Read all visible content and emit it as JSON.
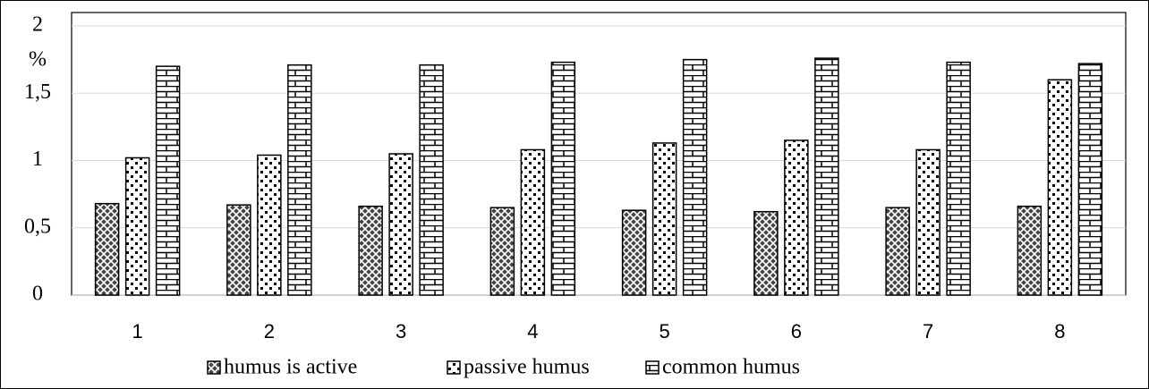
{
  "chart_data": {
    "type": "bar",
    "y_label": "%",
    "categories": [
      "1",
      "2",
      "3",
      "4",
      "5",
      "6",
      "7",
      "8"
    ],
    "series": [
      {
        "name": "humus is active",
        "color": "#000000",
        "values": [
          0.68,
          0.67,
          0.66,
          0.65,
          0.63,
          0.62,
          0.65,
          0.66
        ]
      },
      {
        "name": "passive humus",
        "color": "#000000",
        "values": [
          1.02,
          1.04,
          1.05,
          1.08,
          1.13,
          1.15,
          1.08,
          1.6
        ]
      },
      {
        "name": "common humus",
        "color": "#000000",
        "values": [
          1.7,
          1.71,
          1.71,
          1.73,
          1.75,
          1.76,
          1.73,
          1.72
        ]
      }
    ],
    "ylim": [
      0,
      2
    ],
    "yticks": [
      0,
      {
        "value": 0.5,
        "label": "0,5"
      },
      1,
      {
        "value": 1.5,
        "label": "1,5"
      },
      2
    ],
    "grid": true,
    "legend": "bottom"
  }
}
